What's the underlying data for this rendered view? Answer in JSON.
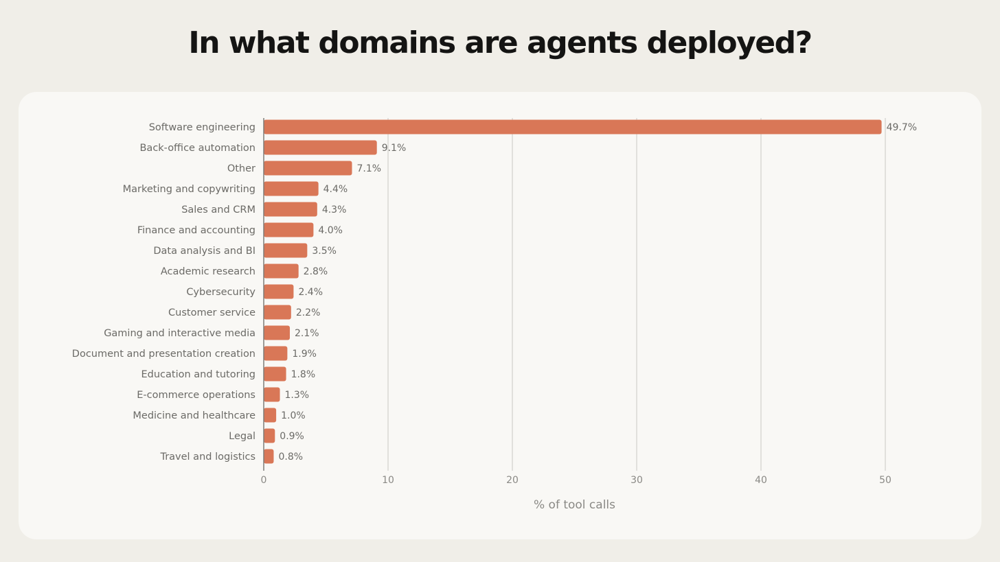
{
  "title": "In what domains are agents deployed?",
  "colors": {
    "bar": "#d97757",
    "grid": "#d4d3cf",
    "axis": "#7d7c78"
  },
  "chart_data": {
    "type": "bar",
    "orientation": "horizontal",
    "categories": [
      "Software engineering",
      "Back-office automation",
      "Other",
      "Marketing and copywriting",
      "Sales and CRM",
      "Finance and accounting",
      "Data analysis and BI",
      "Academic research",
      "Cybersecurity",
      "Customer service",
      "Gaming and interactive media",
      "Document and presentation creation",
      "Education and tutoring",
      "E-commerce operations",
      "Medicine and healthcare",
      "Legal",
      "Travel and logistics"
    ],
    "values": [
      49.7,
      9.1,
      7.1,
      4.4,
      4.3,
      4.0,
      3.5,
      2.8,
      2.4,
      2.2,
      2.1,
      1.9,
      1.8,
      1.3,
      1.0,
      0.9,
      0.8
    ],
    "value_labels": [
      "49.7%",
      "9.1%",
      "7.1%",
      "4.4%",
      "4.3%",
      "4.0%",
      "3.5%",
      "2.8%",
      "2.4%",
      "2.2%",
      "2.1%",
      "1.9%",
      "1.8%",
      "1.3%",
      "1.0%",
      "0.9%",
      "0.8%"
    ],
    "xlabel": "% of tool calls",
    "ylabel": "",
    "xlim": [
      0,
      50
    ],
    "xticks": [
      0,
      10,
      20,
      30,
      40,
      50
    ],
    "xtick_labels": [
      "0",
      "10",
      "20",
      "30",
      "40",
      "50"
    ],
    "grid": true
  }
}
